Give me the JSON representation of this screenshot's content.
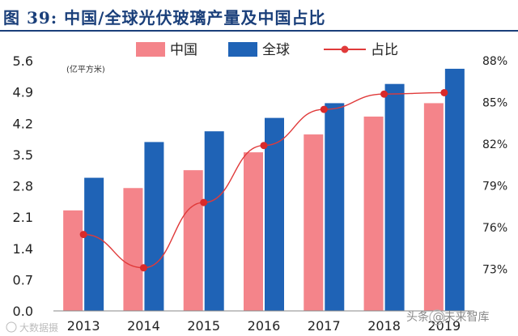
{
  "figure": {
    "label": "图 39:",
    "title_text": "中国/全球光伏玻璃产量及中国占比"
  },
  "chart_data": {
    "type": "bar",
    "title": "图 39: 中国/全球光伏玻璃产量及中国占比",
    "unit_label": "(亿平方米)",
    "categories": [
      "2013",
      "2014",
      "2015",
      "2016",
      "2017",
      "2018",
      "2019"
    ],
    "series": [
      {
        "name": "中国",
        "type": "bar",
        "axis": "left",
        "color": "#f4848a",
        "values": [
          2.25,
          2.75,
          3.15,
          3.55,
          3.95,
          4.35,
          4.65
        ]
      },
      {
        "name": "全球",
        "type": "bar",
        "axis": "left",
        "color": "#1f63b6",
        "values": [
          2.98,
          3.78,
          4.02,
          4.32,
          4.65,
          5.08,
          5.42
        ]
      },
      {
        "name": "占比",
        "type": "line",
        "axis": "right",
        "color": "#e03a3a",
        "values": [
          75.5,
          73.1,
          77.8,
          81.9,
          84.5,
          85.6,
          85.7
        ]
      }
    ],
    "left_axis": {
      "min": 0,
      "max": 5.6,
      "ticks": [
        "0.0",
        "0.7",
        "1.4",
        "2.1",
        "2.8",
        "3.5",
        "4.2",
        "4.9",
        "5.6"
      ]
    },
    "right_axis": {
      "min": 70,
      "max": 88,
      "ticks": [
        "73%",
        "76%",
        "79%",
        "82%",
        "85%",
        "88%"
      ]
    },
    "legend_position": "top-center"
  },
  "watermarks": {
    "bottom_left": "大数据摄",
    "bottom_right": "头条 @未来智库"
  }
}
